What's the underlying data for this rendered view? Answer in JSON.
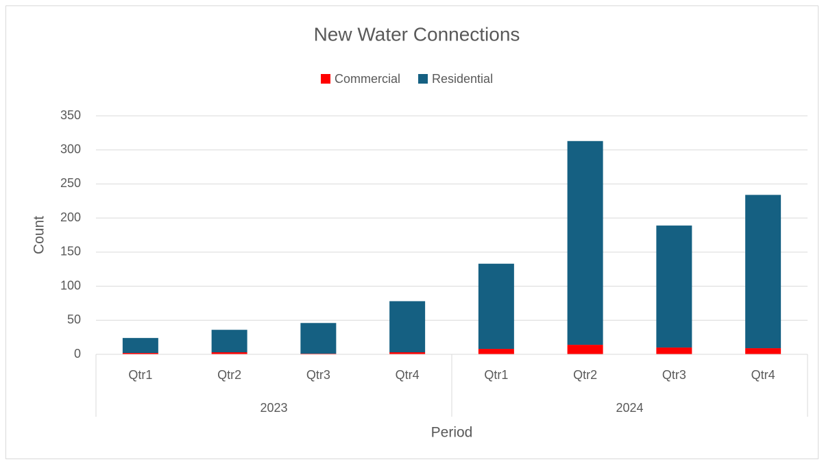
{
  "chart_data": {
    "type": "stacked_bar",
    "title": "New Water Connections",
    "groups": [
      {
        "label": "2023",
        "categories": [
          "Qtr1",
          "Qtr2",
          "Qtr3",
          "Qtr4"
        ]
      },
      {
        "label": "2024",
        "categories": [
          "Qtr1",
          "Qtr2",
          "Qtr3",
          "Qtr4"
        ]
      }
    ],
    "series": [
      {
        "name": "Commercial",
        "color": "#ff0000",
        "values": [
          2,
          3,
          1,
          3,
          8,
          14,
          10,
          9
        ]
      },
      {
        "name": "Residential",
        "color": "#156082",
        "values": [
          22,
          33,
          45,
          75,
          125,
          299,
          179,
          225
        ]
      }
    ],
    "ylim": [
      0,
      350
    ],
    "yticks": [
      0,
      50,
      100,
      150,
      200,
      250,
      300,
      350
    ],
    "ylabel": "Count",
    "xlabel": "Period",
    "grid": true,
    "legend": "top"
  }
}
